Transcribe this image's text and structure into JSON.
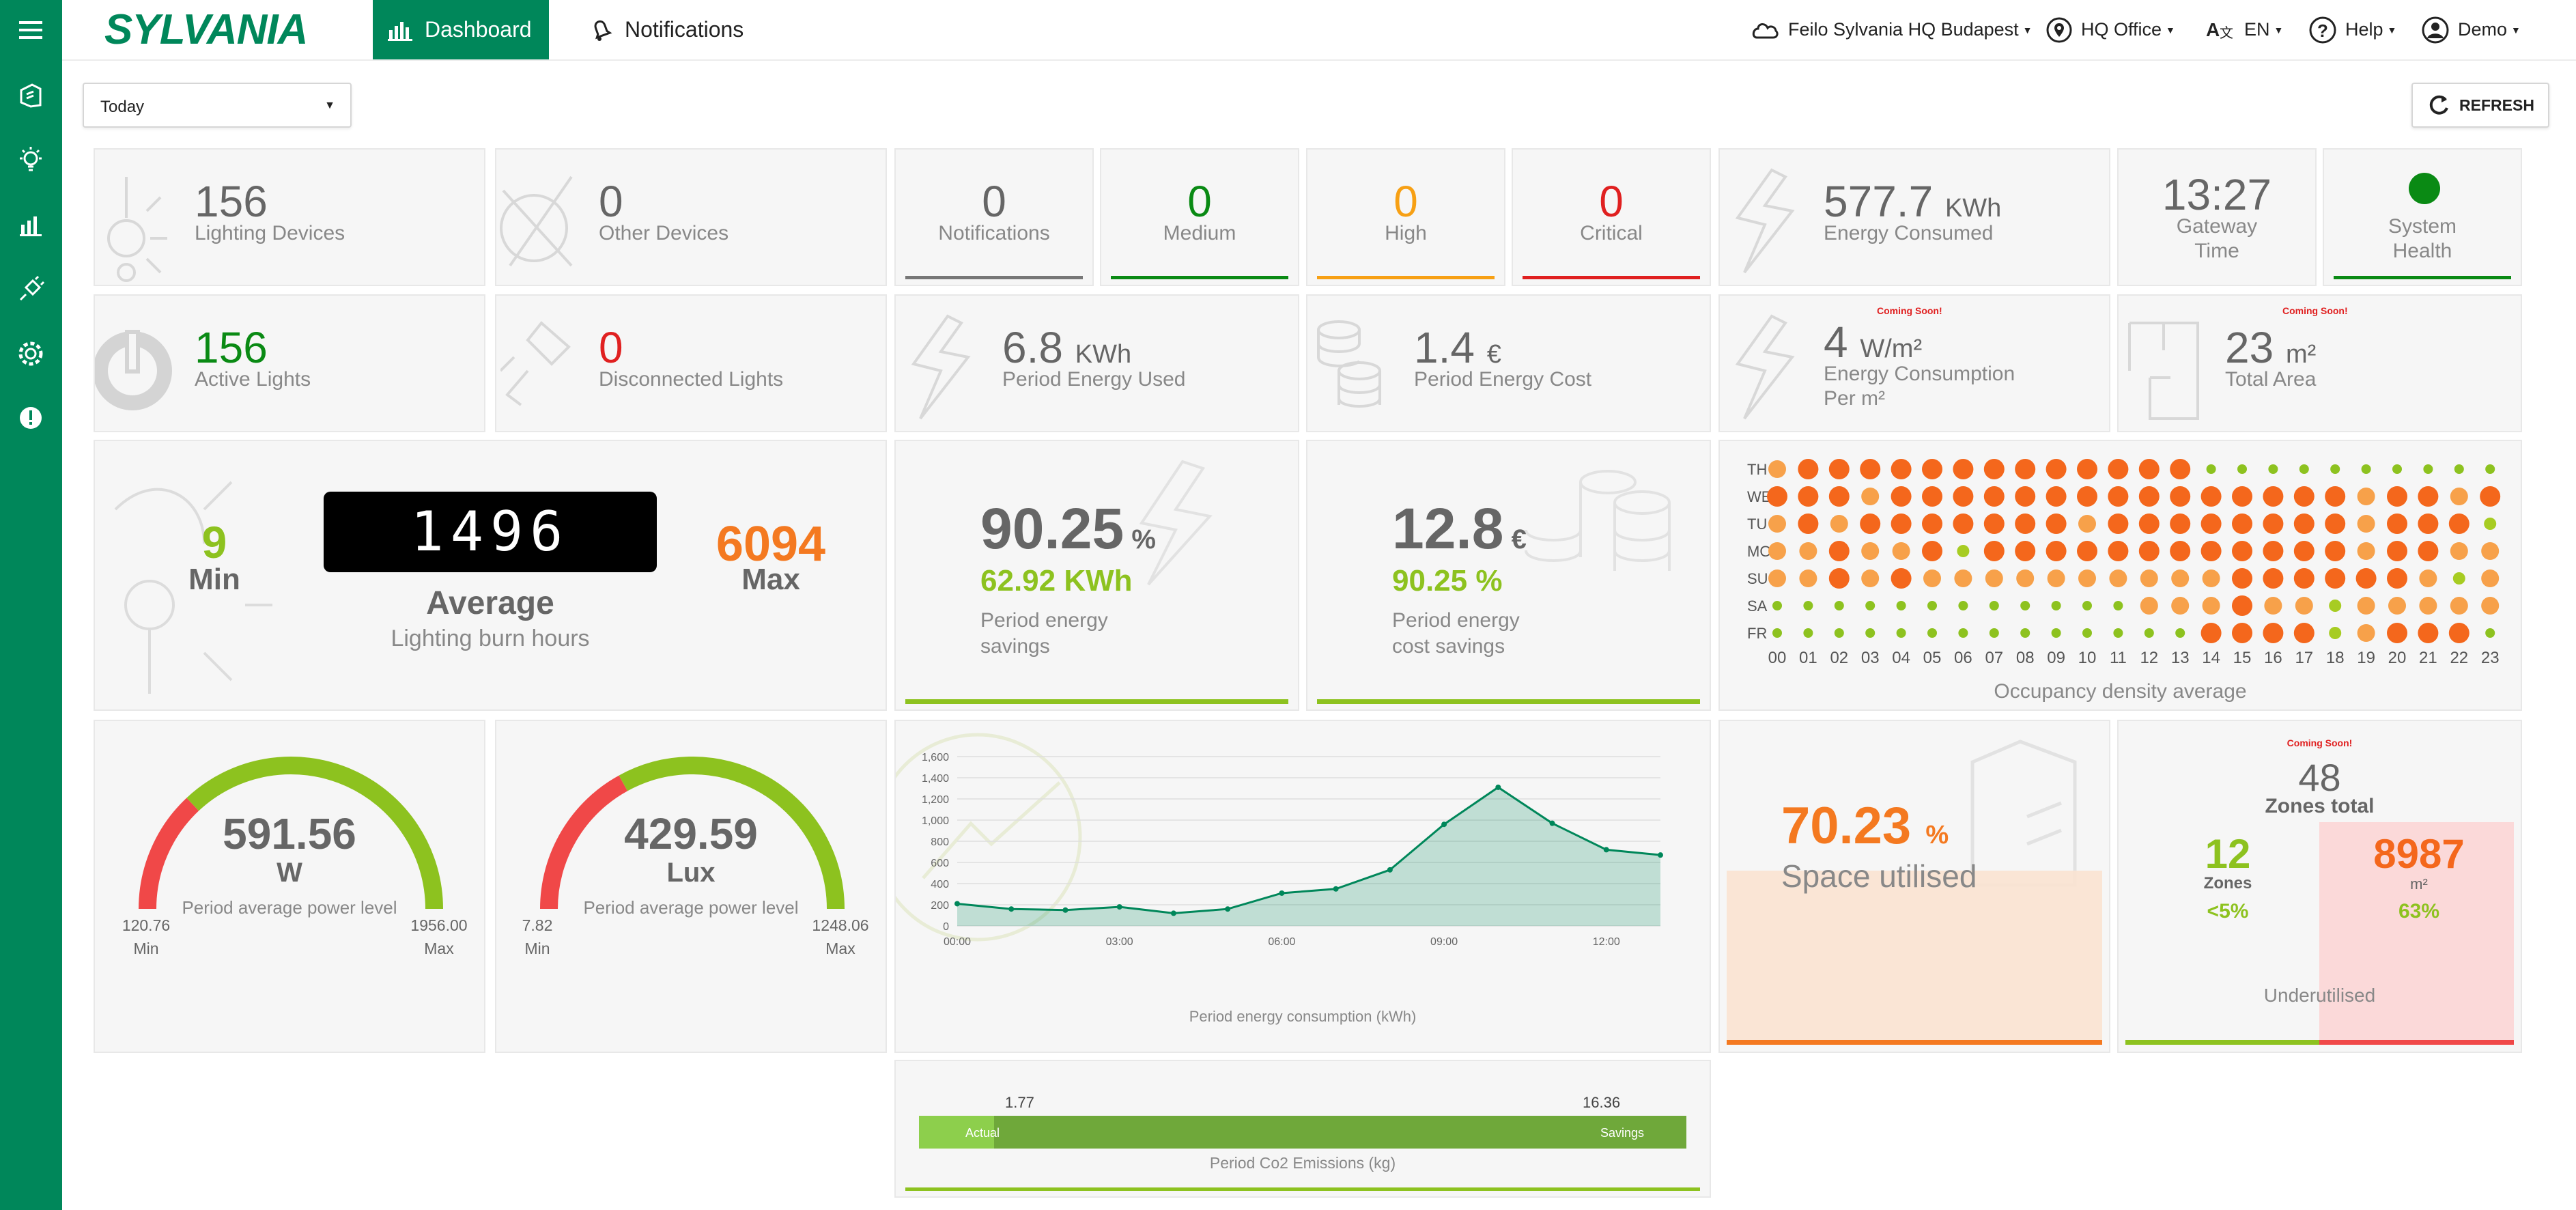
{
  "brand": {
    "logo_text": "SYLVANIA",
    "primary": "#00875a",
    "green": "#8dc21f",
    "orange": "#f47920",
    "red": "#e02020"
  },
  "nav": {
    "dashboard": "Dashboard",
    "notifications": "Notifications"
  },
  "topbar": {
    "site": "Feilo Sylvania HQ Budapest",
    "office": "HQ Office",
    "lang": "EN",
    "help": "Help",
    "user": "Demo"
  },
  "filters": {
    "period": "Today",
    "refresh": "REFRESH"
  },
  "tiles": {
    "lighting_devices": {
      "value": "156",
      "label": "Lighting Devices"
    },
    "other_devices": {
      "value": "0",
      "label": "Other Devices"
    },
    "notifications": {
      "value": "0",
      "label": "Notifications"
    },
    "medium": {
      "value": "0",
      "label": "Medium"
    },
    "high": {
      "value": "0",
      "label": "High"
    },
    "critical": {
      "value": "0",
      "label": "Critical"
    },
    "energy_consumed": {
      "value": "577.7",
      "unit": "KWh",
      "label": "Energy Consumed"
    },
    "gateway_time": {
      "value": "13:27",
      "label1": "Gateway",
      "label2": "Time"
    },
    "system_health": {
      "label1": "System",
      "label2": "Health"
    },
    "active_lights": {
      "value": "156",
      "label": "Active Lights"
    },
    "disconnected_lights": {
      "value": "0",
      "label": "Disconnected Lights"
    },
    "period_energy_used": {
      "value": "6.8",
      "unit": "KWh",
      "label": "Period Energy Used"
    },
    "period_energy_cost": {
      "value": "1.4",
      "unit": "€",
      "label": "Period Energy Cost"
    },
    "energy_per_m2": {
      "soon": "Coming Soon!",
      "value": "4",
      "unit": "W/m²",
      "label1": "Energy Consumption",
      "label2": "Per m²"
    },
    "total_area": {
      "soon": "Coming Soon!",
      "value": "23",
      "unit": "m²",
      "label": "Total Area"
    }
  },
  "burn_hours": {
    "min": "9",
    "min_label": "Min",
    "average": "1496",
    "average_label": "Average",
    "max": "6094",
    "max_label": "Max",
    "caption": "Lighting burn hours"
  },
  "energy_savings": {
    "percent": "90.25",
    "percent_unit": "%",
    "kwh": "62.92 KWh",
    "label1": "Period energy",
    "label2": "savings"
  },
  "cost_savings": {
    "value": "12.8",
    "unit": "€",
    "percent": "90.25 %",
    "label1": "Period energy",
    "label2": "cost savings"
  },
  "occupancy": {
    "title": "Occupancy density average",
    "days": [
      "TH",
      "WE",
      "TU",
      "MO",
      "SU",
      "SA",
      "FR"
    ],
    "hours": [
      "00",
      "01",
      "02",
      "03",
      "04",
      "05",
      "06",
      "07",
      "08",
      "09",
      "10",
      "11",
      "12",
      "13",
      "14",
      "15",
      "16",
      "17",
      "18",
      "19",
      "20",
      "21",
      "22",
      "23"
    ],
    "levels": [
      [
        2,
        3,
        3,
        3,
        3,
        3,
        3,
        3,
        3,
        3,
        3,
        3,
        3,
        3,
        0,
        0,
        0,
        0,
        0,
        0,
        0,
        0,
        0,
        0
      ],
      [
        3,
        3,
        3,
        2,
        3,
        3,
        3,
        3,
        3,
        3,
        3,
        3,
        3,
        3,
        3,
        3,
        3,
        3,
        3,
        2,
        3,
        3,
        2,
        3
      ],
      [
        2,
        3,
        2,
        3,
        3,
        3,
        3,
        3,
        3,
        3,
        2,
        3,
        3,
        3,
        3,
        3,
        3,
        3,
        3,
        2,
        3,
        3,
        3,
        1
      ],
      [
        2,
        2,
        3,
        2,
        2,
        3,
        1,
        3,
        3,
        3,
        3,
        3,
        3,
        3,
        3,
        3,
        3,
        3,
        3,
        2,
        3,
        3,
        2,
        2
      ],
      [
        2,
        2,
        3,
        2,
        3,
        2,
        2,
        2,
        2,
        2,
        2,
        2,
        2,
        2,
        2,
        3,
        3,
        3,
        3,
        3,
        3,
        2,
        1,
        2
      ],
      [
        0,
        0,
        0,
        0,
        0,
        0,
        0,
        0,
        0,
        0,
        0,
        0,
        2,
        2,
        2,
        3,
        2,
        2,
        1,
        2,
        2,
        2,
        2,
        2
      ],
      [
        0,
        0,
        0,
        0,
        0,
        0,
        0,
        0,
        0,
        0,
        0,
        0,
        0,
        0,
        3,
        3,
        3,
        3,
        1,
        2,
        3,
        3,
        3,
        0
      ]
    ],
    "level_colors": [
      "#8dc21f",
      "#a7cc22",
      "#f7a14a",
      "#f4671c"
    ]
  },
  "power_gauge": {
    "value": "591.56",
    "unit": "W",
    "caption": "Period average power level",
    "min": "120.76",
    "max": "1956.00",
    "min_label": "Min",
    "max_label": "Max",
    "fraction": 0.26
  },
  "lux_gauge": {
    "value": "429.59",
    "unit": "Lux",
    "caption": "Period average power level",
    "min": "7.82",
    "max": "1248.06",
    "min_label": "Min",
    "max_label": "Max",
    "fraction": 0.34
  },
  "chart_data": {
    "type": "area",
    "title": "Period energy consumption (kWh)",
    "x": [
      "00:00",
      "01:00",
      "02:00",
      "03:00",
      "04:00",
      "05:00",
      "06:00",
      "07:00",
      "08:00",
      "09:00",
      "10:00",
      "11:00",
      "12:00",
      "13:00"
    ],
    "values": [
      210,
      160,
      150,
      180,
      120,
      160,
      310,
      350,
      530,
      960,
      1310,
      970,
      720,
      670
    ],
    "ylim": [
      0,
      1600
    ],
    "yticks": [
      "0",
      "200",
      "400",
      "600",
      "800",
      "1,000",
      "1,200",
      "1,400",
      "1,600"
    ],
    "xticks": [
      "00:00",
      "03:00",
      "06:00",
      "09:00",
      "12:00"
    ]
  },
  "space": {
    "percent": "70.23",
    "percent_unit": "%",
    "label": "Space utilised",
    "fraction": 0.7023
  },
  "zones": {
    "soon": "Coming Soon!",
    "total": "48",
    "total_label": "Zones total",
    "zones": "12",
    "zones_label": "Zones",
    "zones_pct": "<5%",
    "area": "8987",
    "area_unit": "m²",
    "area_pct": "63%",
    "caption": "Underutilised"
  },
  "co2": {
    "actual": "1.77",
    "savings": "16.36",
    "actual_label": "Actual",
    "savings_label": "Savings",
    "caption": "Period Co2 Emissions (kg)",
    "actual_fraction": 0.0976
  }
}
